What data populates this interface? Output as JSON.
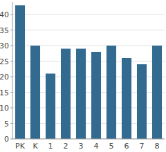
{
  "chart_data": {
    "type": "bar",
    "categories": [
      "PK",
      "K",
      "1",
      "2",
      "3",
      "4",
      "5",
      "6",
      "7",
      "8"
    ],
    "values": [
      43,
      30,
      21,
      29,
      29,
      28,
      30,
      26,
      24,
      30
    ],
    "color": "#336a90",
    "ylim": [
      0,
      44
    ],
    "yticks": [
      0,
      5,
      10,
      15,
      20,
      25,
      30,
      35,
      40
    ],
    "grid": true
  }
}
